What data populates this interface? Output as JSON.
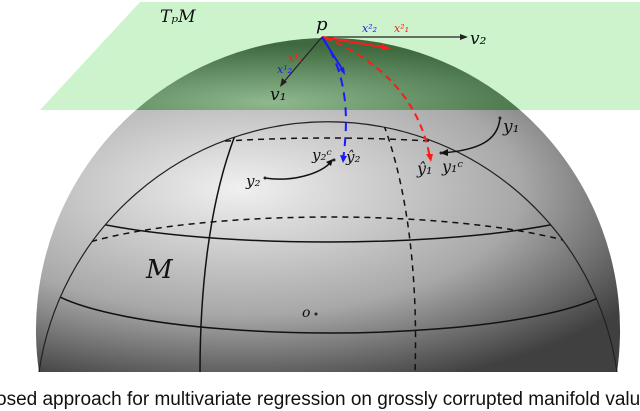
{
  "labels": {
    "tangent_space": "TₚM",
    "manifold": "M",
    "point_p": "p",
    "v1": "v₁",
    "v2": "v₂",
    "x1_1": "x¹₁",
    "x1_2": "x²₁",
    "x2_1": "x¹₂",
    "x2_2": "x²₂",
    "y1": "y₁",
    "y2": "y₂",
    "y1c": "y₁ᶜ",
    "y2c": "y₂ᶜ",
    "y1hat": "ŷ₁",
    "y2hat": "ŷ₂",
    "origin": "o"
  },
  "caption": "osed approach for multivariate regression on grossly corrupted manifold valu",
  "colors": {
    "plane": "#c8f0c8",
    "red": "#ff1a1a",
    "blue": "#1a1aff",
    "sphere": "#9a9a9a"
  }
}
